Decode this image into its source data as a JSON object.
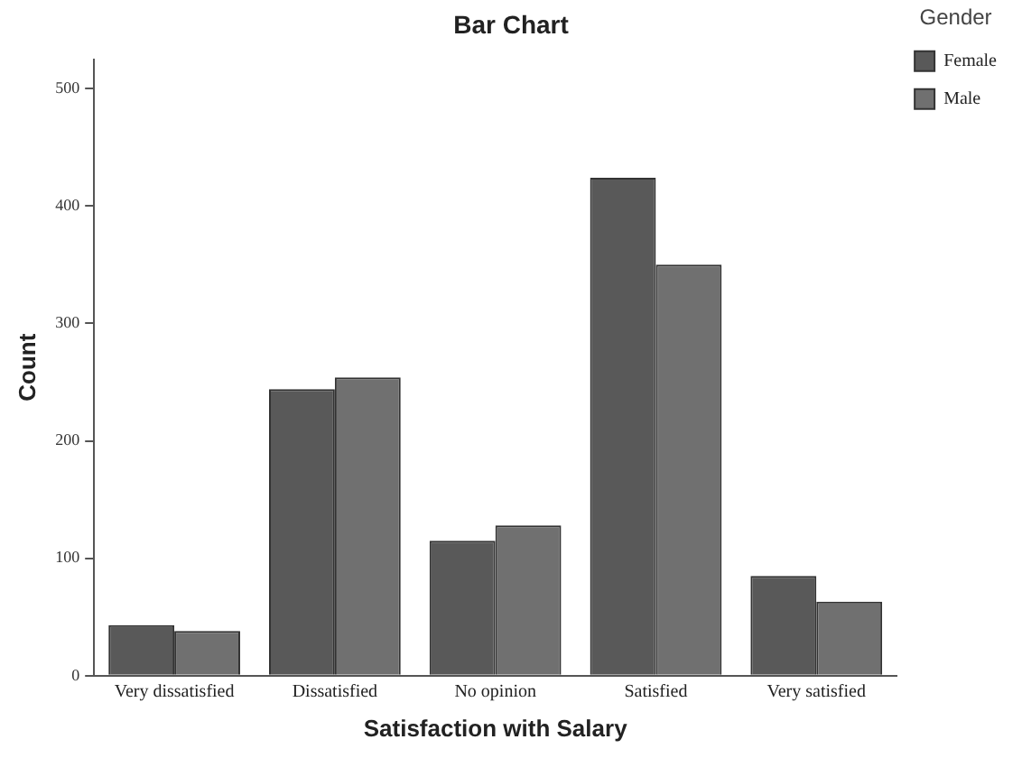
{
  "chart_data": {
    "type": "bar",
    "title": "Bar Chart",
    "xlabel": "Satisfaction with Salary",
    "ylabel": "Count",
    "legend_title": "Gender",
    "categories": [
      "Very dissatisfied",
      "Dissatisfied",
      "No opinion",
      "Satisfied",
      "Very satisfied"
    ],
    "series": [
      {
        "name": "Female",
        "color": "#595959",
        "values": [
          43,
          244,
          115,
          424,
          85
        ]
      },
      {
        "name": "Male",
        "color": "#707070",
        "values": [
          38,
          254,
          128,
          350,
          63
        ]
      }
    ],
    "ylim": [
      0,
      525
    ],
    "yticks": [
      0,
      100,
      200,
      300,
      400,
      500
    ],
    "grid": false,
    "legend": "top right"
  }
}
